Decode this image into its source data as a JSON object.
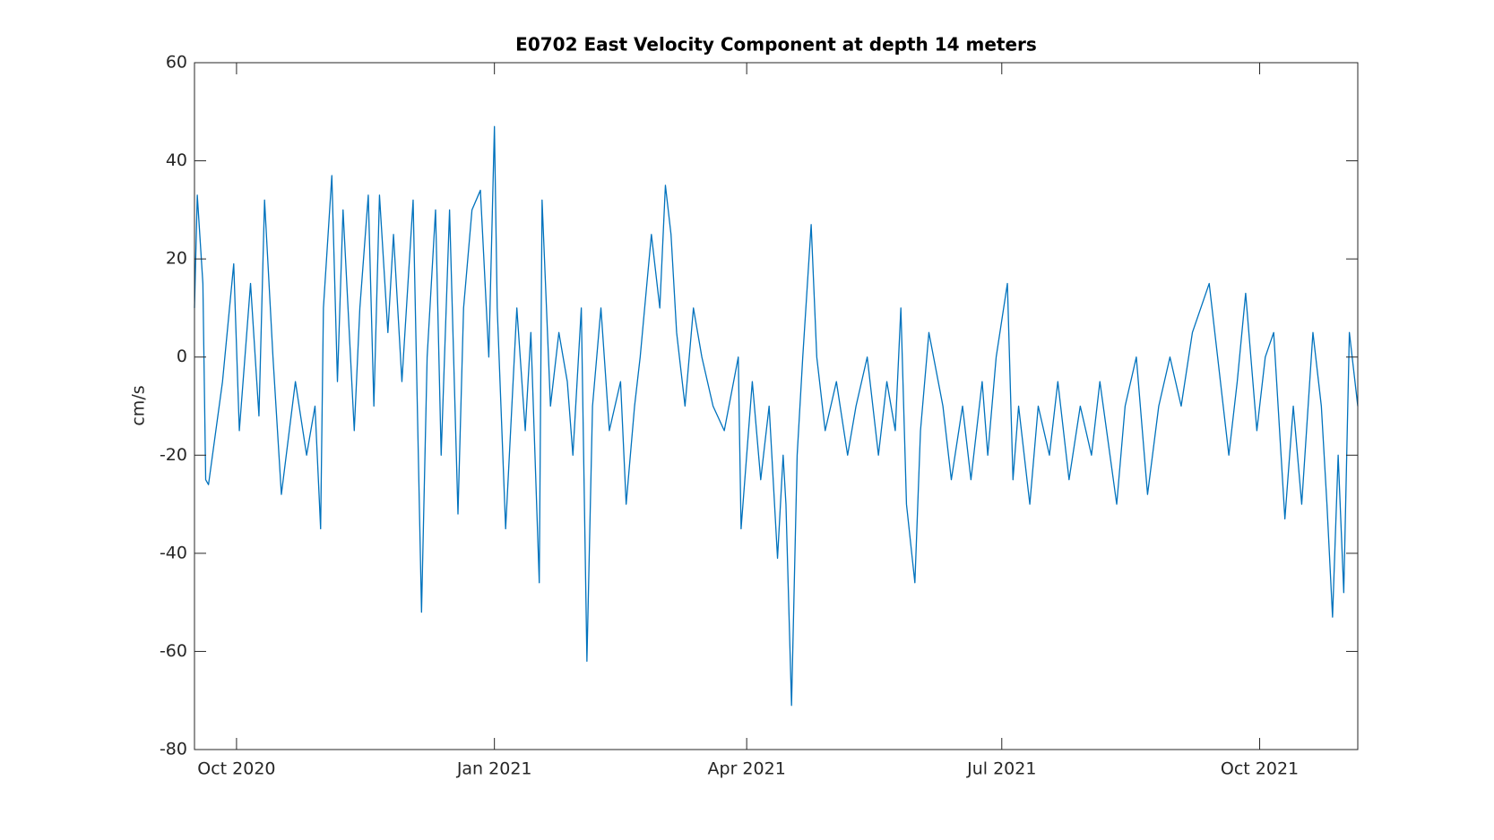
{
  "chart_data": {
    "type": "line",
    "title": "E0702 East Velocity Component at depth 14 meters",
    "y_label": "cm/s",
    "x": [
      "2020-09-16",
      "2020-09-17",
      "2020-09-19",
      "2020-09-20",
      "2020-09-21",
      "2020-09-26",
      "2020-09-30",
      "2020-10-02",
      "2020-10-06",
      "2020-10-09",
      "2020-10-11",
      "2020-10-14",
      "2020-10-17",
      "2020-10-22",
      "2020-10-26",
      "2020-10-29",
      "2020-10-31",
      "2020-11-01",
      "2020-11-04",
      "2020-11-06",
      "2020-11-08",
      "2020-11-12",
      "2020-11-14",
      "2020-11-17",
      "2020-11-19",
      "2020-11-21",
      "2020-11-24",
      "2020-11-26",
      "2020-11-29",
      "2020-12-03",
      "2020-12-06",
      "2020-12-08",
      "2020-12-11",
      "2020-12-13",
      "2020-12-16",
      "2020-12-19",
      "2020-12-21",
      "2020-12-24",
      "2020-12-27",
      "2020-12-30",
      "2021-01-01",
      "2021-01-02",
      "2021-01-04",
      "2021-01-05",
      "2021-01-09",
      "2021-01-12",
      "2021-01-14",
      "2021-01-17",
      "2021-01-18",
      "2021-01-21",
      "2021-01-24",
      "2021-01-27",
      "2021-01-29",
      "2021-02-01",
      "2021-02-03",
      "2021-02-05",
      "2021-02-08",
      "2021-02-11",
      "2021-02-15",
      "2021-02-17",
      "2021-02-20",
      "2021-02-22",
      "2021-02-26",
      "2021-03-01",
      "2021-03-03",
      "2021-03-05",
      "2021-03-07",
      "2021-03-10",
      "2021-03-13",
      "2021-03-16",
      "2021-03-20",
      "2021-03-24",
      "2021-03-29",
      "2021-03-30",
      "2021-04-03",
      "2021-04-06",
      "2021-04-09",
      "2021-04-12",
      "2021-04-14",
      "2021-04-15",
      "2021-04-17",
      "2021-04-19",
      "2021-04-21",
      "2021-04-24",
      "2021-04-26",
      "2021-04-29",
      "2021-05-03",
      "2021-05-07",
      "2021-05-10",
      "2021-05-14",
      "2021-05-18",
      "2021-05-21",
      "2021-05-24",
      "2021-05-26",
      "2021-05-28",
      "2021-05-31",
      "2021-06-02",
      "2021-06-05",
      "2021-06-10",
      "2021-06-13",
      "2021-06-17",
      "2021-06-20",
      "2021-06-24",
      "2021-06-26",
      "2021-06-29",
      "2021-07-03",
      "2021-07-05",
      "2021-07-07",
      "2021-07-11",
      "2021-07-14",
      "2021-07-18",
      "2021-07-21",
      "2021-07-25",
      "2021-07-29",
      "2021-08-02",
      "2021-08-05",
      "2021-08-11",
      "2021-08-14",
      "2021-08-18",
      "2021-08-22",
      "2021-08-26",
      "2021-08-30",
      "2021-09-03",
      "2021-09-07",
      "2021-09-13",
      "2021-09-17",
      "2021-09-20",
      "2021-09-23",
      "2021-09-26",
      "2021-09-30",
      "2021-10-03",
      "2021-10-06",
      "2021-10-10",
      "2021-10-13",
      "2021-10-16",
      "2021-10-20",
      "2021-10-23",
      "2021-10-25",
      "2021-10-27",
      "2021-10-29",
      "2021-10-31",
      "2021-11-02",
      "2021-11-05"
    ],
    "series": [
      {
        "color": "#0072bd",
        "values": [
          10,
          33,
          15,
          -25,
          -26,
          -5,
          19,
          -15,
          15,
          -12,
          32,
          0,
          -28,
          -5,
          -20,
          -10,
          -35,
          10,
          37,
          -5,
          30,
          -15,
          10,
          33,
          -10,
          33,
          5,
          25,
          -5,
          32,
          -52,
          0,
          30,
          -20,
          30,
          -32,
          10,
          30,
          34,
          0,
          47,
          10,
          -20,
          -35,
          10,
          -15,
          5,
          -46,
          32,
          -10,
          5,
          -5,
          -20,
          10,
          -62,
          -10,
          10,
          -15,
          -5,
          -30,
          -10,
          0,
          25,
          10,
          35,
          25,
          5,
          -10,
          10,
          0,
          -10,
          -15,
          0,
          -35,
          -5,
          -25,
          -10,
          -41,
          -20,
          -30,
          -71,
          -20,
          0,
          27,
          0,
          -15,
          -5,
          -20,
          -10,
          0,
          -20,
          -5,
          -15,
          10,
          -30,
          -46,
          -15,
          5,
          -10,
          -25,
          -10,
          -25,
          -5,
          -20,
          0,
          15,
          -25,
          -10,
          -30,
          -10,
          -20,
          -5,
          -25,
          -10,
          -20,
          -5,
          -30,
          -10,
          0,
          -28,
          -10,
          0,
          -10,
          5,
          15,
          -5,
          -20,
          -5,
          13,
          -15,
          0,
          5,
          -33,
          -10,
          -30,
          5,
          -10,
          -30,
          -53,
          -20,
          -48,
          5,
          -10
        ]
      }
    ],
    "xlim": [
      "2020-09-16",
      "2021-11-05"
    ],
    "xticks": [
      {
        "value": "2020-10-01",
        "label": "Oct 2020"
      },
      {
        "value": "2021-01-01",
        "label": "Jan 2021"
      },
      {
        "value": "2021-04-01",
        "label": "Apr 2021"
      },
      {
        "value": "2021-07-01",
        "label": "Jul 2021"
      },
      {
        "value": "2021-10-01",
        "label": "Oct 2021"
      }
    ],
    "ylim": [
      -80,
      60
    ],
    "yticks": [
      -80,
      -60,
      -40,
      -20,
      0,
      20,
      40,
      60
    ]
  }
}
